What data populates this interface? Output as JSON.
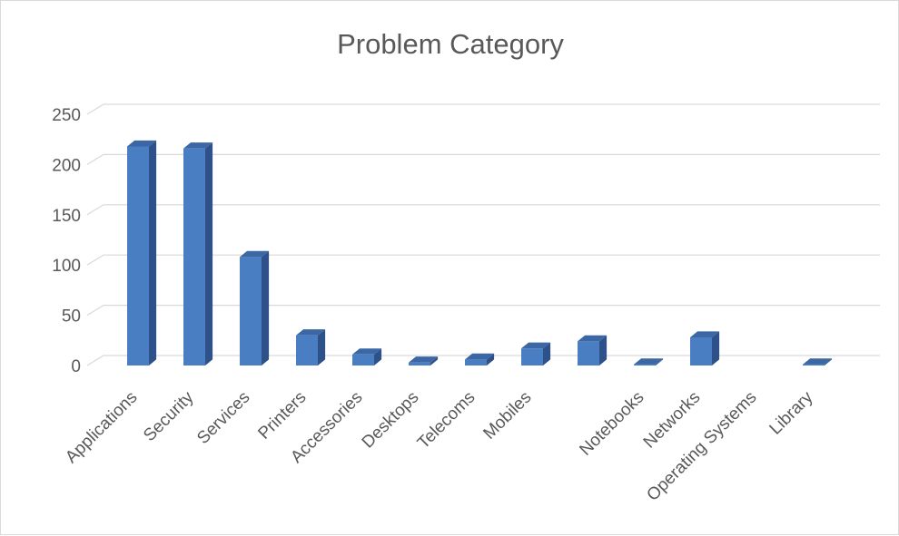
{
  "chart_data": {
    "type": "bar",
    "title": "Problem Category",
    "categories": [
      "Applications",
      "Security",
      "Services",
      "Printers",
      "Accessories",
      "Desktops",
      "Telecoms",
      "Mobiles",
      "",
      "Notebooks",
      "Networks",
      "Operating Systems",
      "Library"
    ],
    "values": [
      218,
      216,
      108,
      30,
      11,
      3,
      6,
      17,
      24,
      1,
      28,
      0,
      1
    ],
    "ylim": [
      0,
      250
    ],
    "yticks": [
      "0",
      "50",
      "100",
      "150",
      "200",
      "250"
    ],
    "xlabel": "",
    "ylabel": "",
    "grid": true,
    "legend": "none",
    "style": "3d-column",
    "colors": {
      "bar_front": "#4a7ec2",
      "bar_side": "#2e5189",
      "bar_top": "#3b67a5",
      "grid": "#d9d9d9",
      "text": "#595959"
    }
  }
}
